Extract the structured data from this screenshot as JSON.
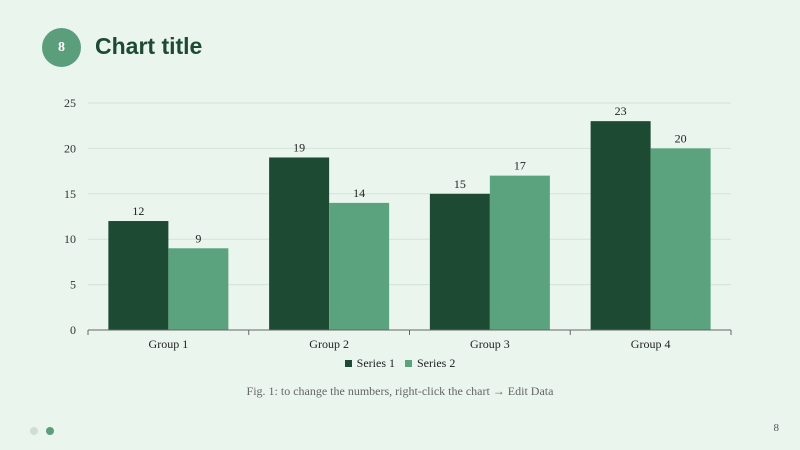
{
  "slide": {
    "number_badge": "8",
    "title": "Chart title",
    "caption": "Fig. 1: to change the numbers, right-click the chart → Edit Data",
    "page_number": "8"
  },
  "colors": {
    "background": "#eaf5ee",
    "accent": "#5a9e7c",
    "title": "#1d4a33",
    "series1": "#1d4a33",
    "series2": "#5aa37e",
    "nav_dot_inactive": "#d0ddd5",
    "nav_dot_active": "#5a9e7c"
  },
  "chart_data": {
    "type": "bar",
    "title": "",
    "xlabel": "",
    "ylabel": "",
    "categories": [
      "Group 1",
      "Group 2",
      "Group 3",
      "Group 4"
    ],
    "series": [
      {
        "name": "Series 1",
        "values": [
          12,
          19,
          15,
          23
        ]
      },
      {
        "name": "Series 2",
        "values": [
          9,
          14,
          17,
          20
        ]
      }
    ],
    "ylim": [
      0,
      25
    ],
    "yticks": [
      0,
      5,
      10,
      15,
      20,
      25
    ],
    "grid": true,
    "data_labels": true,
    "legend_position": "bottom"
  }
}
